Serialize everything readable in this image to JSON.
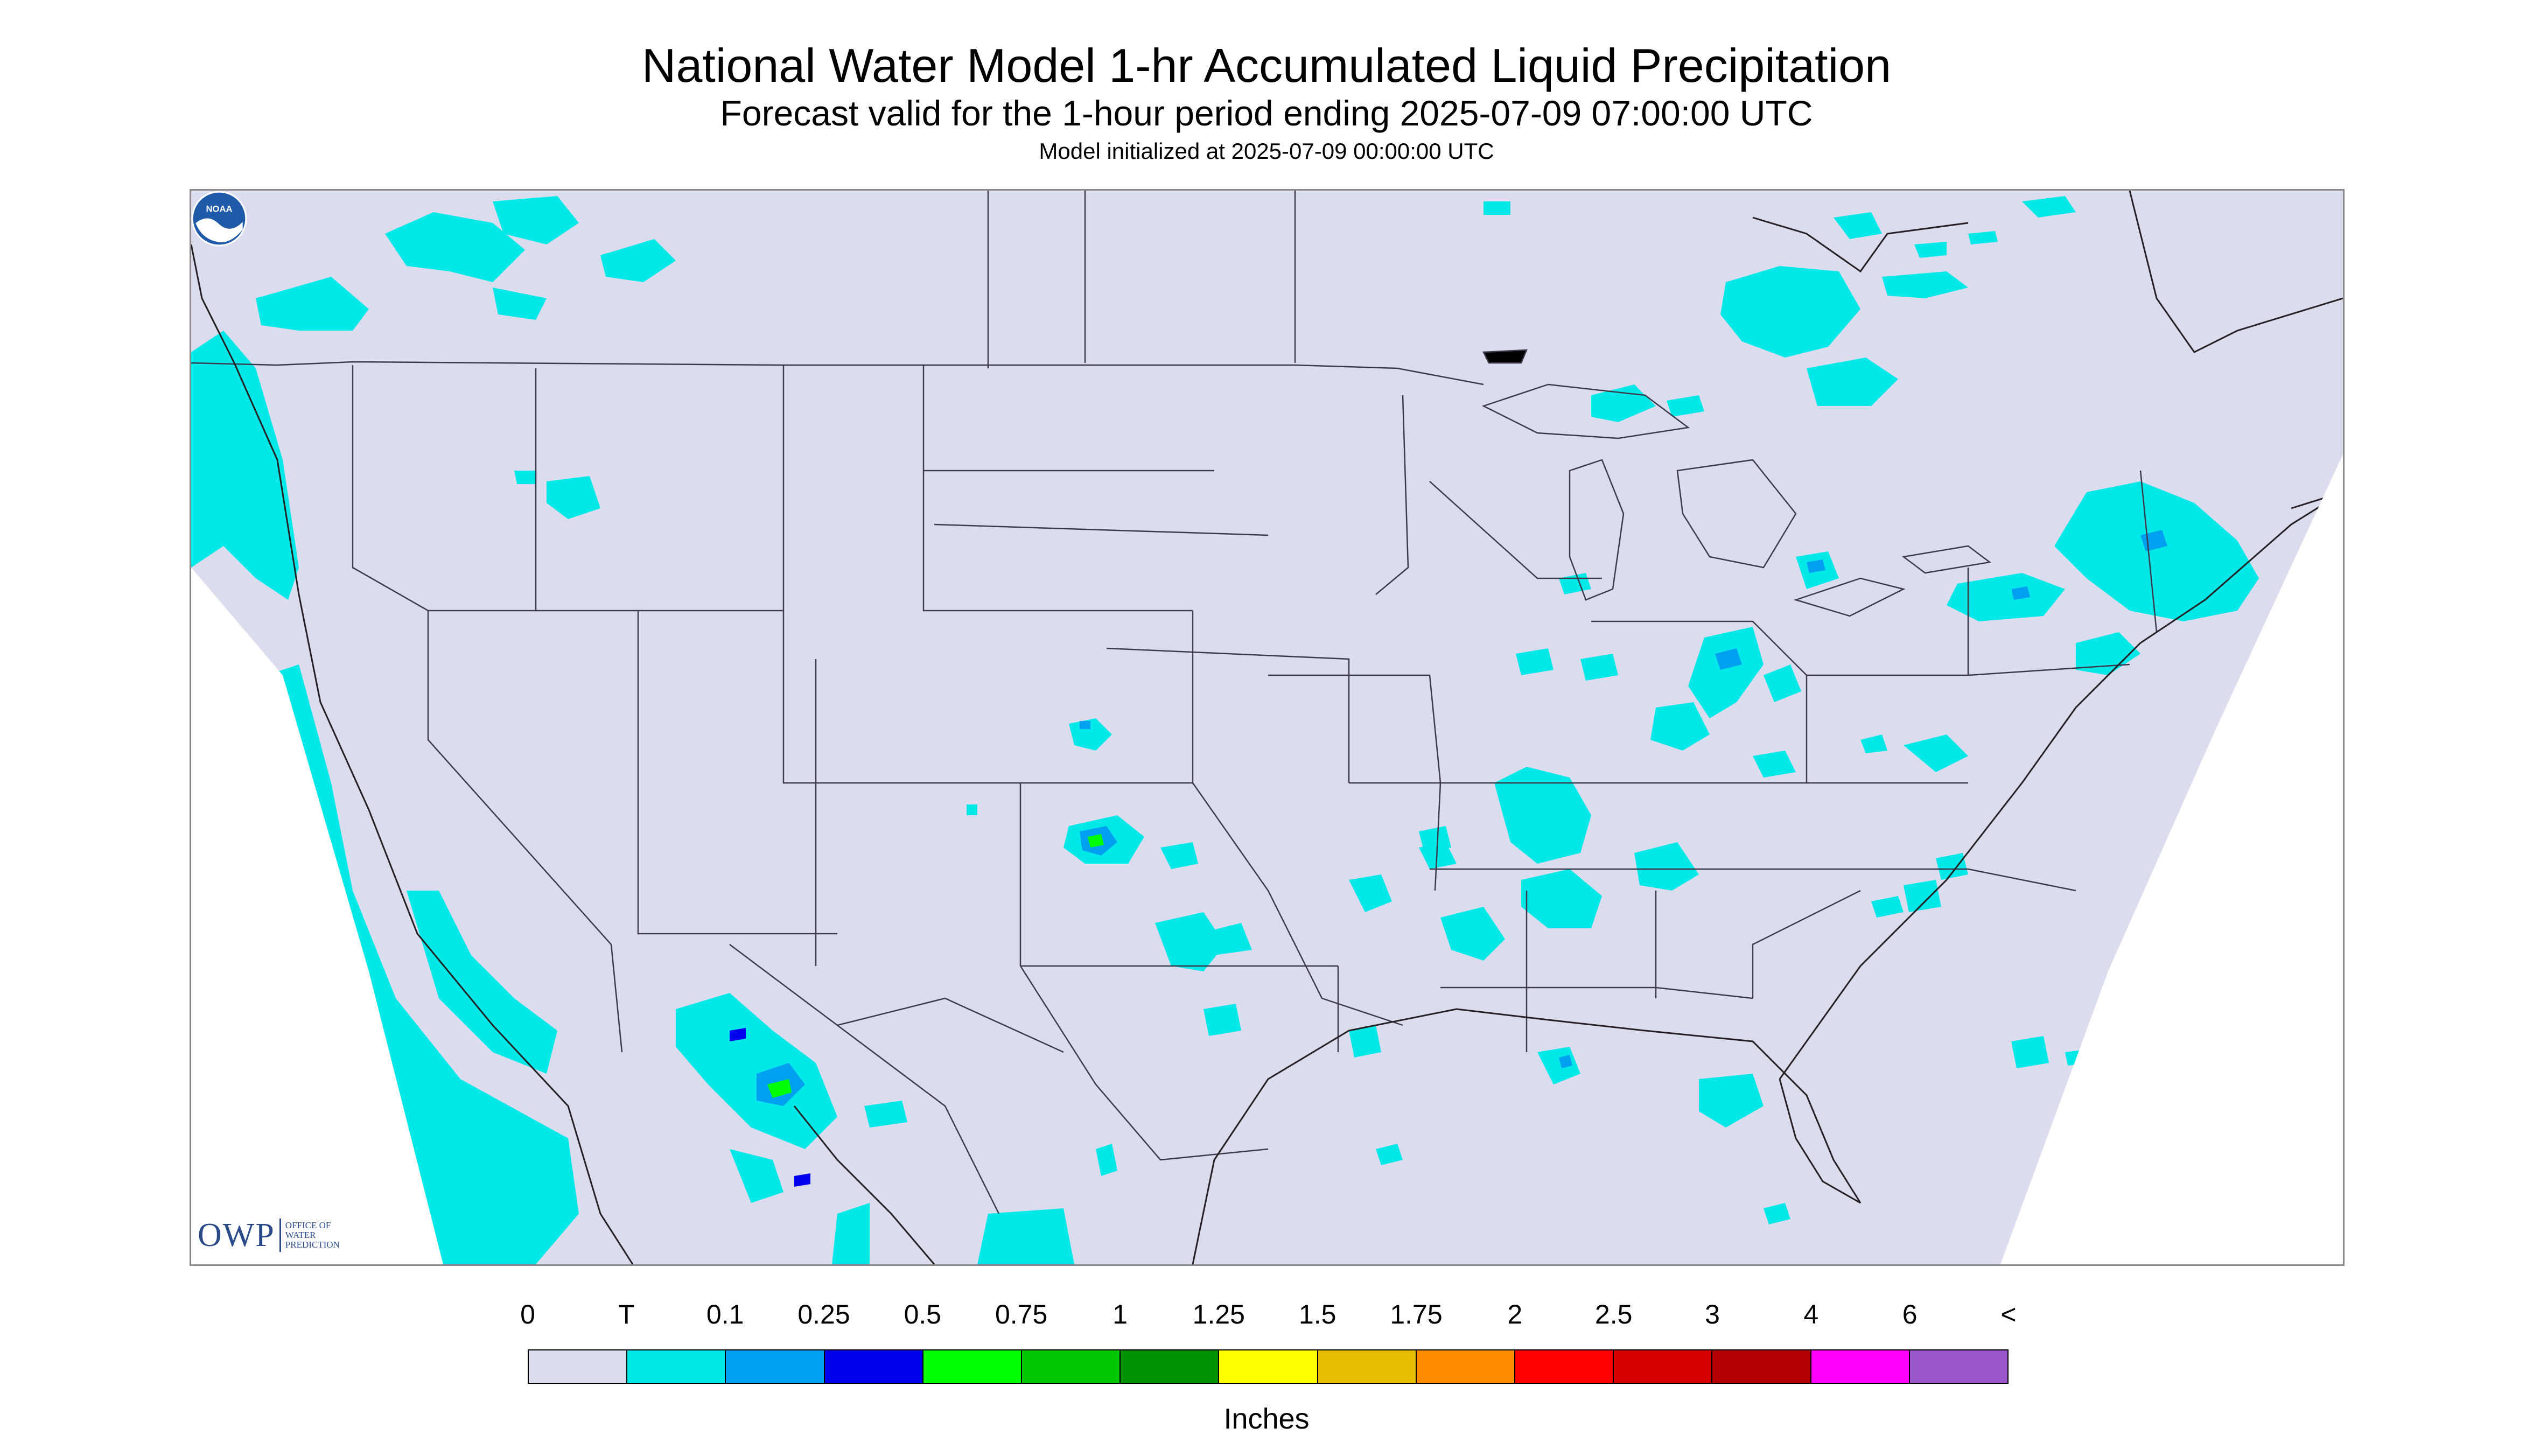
{
  "header": {
    "title": "National Water Model 1-hr Accumulated Liquid Precipitation",
    "subtitle": "Forecast valid for the 1-hour period ending 2025-07-09 07:00:00 UTC",
    "init": "Model initialized at 2025-07-09 00:00:00 UTC"
  },
  "map": {
    "background_color": "#dcdcef",
    "outside_color": "#ffffff",
    "precip_colors": {
      "trace": "#00e8e8",
      "tenth": "#00a0f0",
      "quarter": "#0000f0",
      "green": "#00ff00",
      "yellow": "#ffff00"
    }
  },
  "logos": {
    "owp_main": "OWP",
    "owp_sub": "OFFICE OF WATER PREDICTION",
    "noaa_text": "NOAA"
  },
  "legend": {
    "labels": [
      "0",
      "T",
      "0.1",
      "0.25",
      "0.5",
      "0.75",
      "1",
      "1.25",
      "1.5",
      "1.75",
      "2",
      "2.5",
      "3",
      "4",
      "6",
      "<"
    ],
    "colors": [
      "#dcdcef",
      "#00e8e8",
      "#00a0f0",
      "#0000f0",
      "#00ff00",
      "#00c800",
      "#009000",
      "#ffff00",
      "#e6c000",
      "#ff8c00",
      "#ff0000",
      "#d80000",
      "#b40000",
      "#ff00ff",
      "#9955cc"
    ],
    "units": "Inches"
  }
}
